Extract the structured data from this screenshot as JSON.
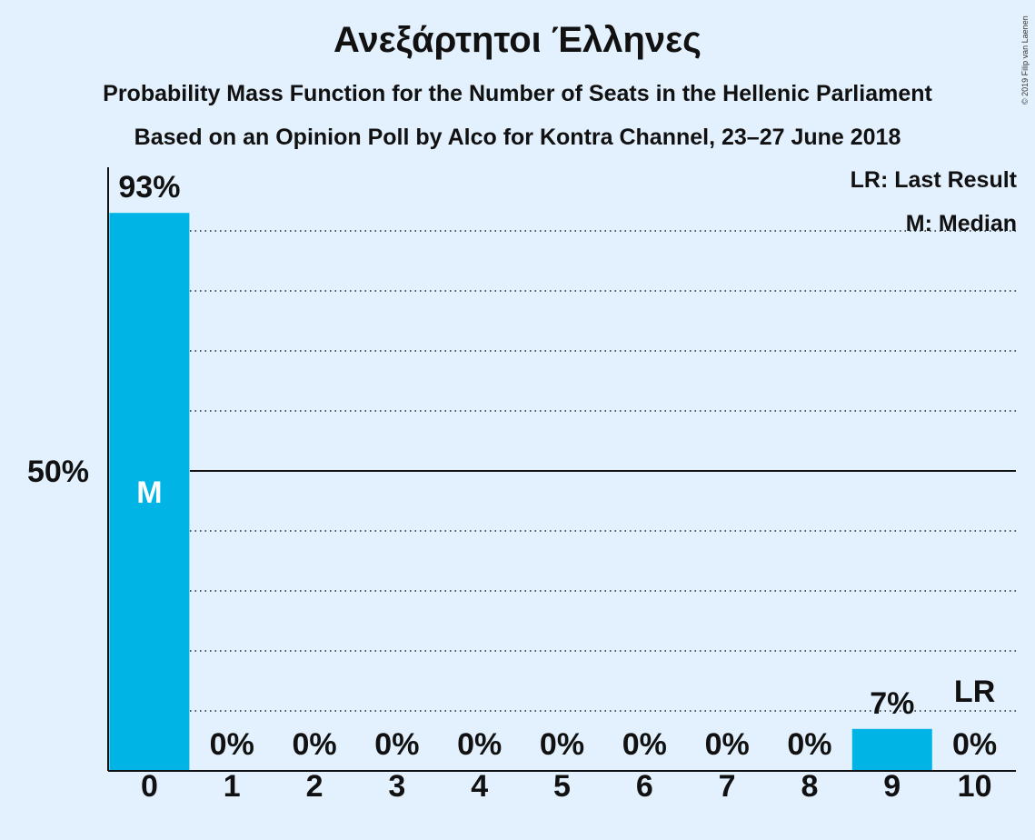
{
  "title": "Ανεξάρτητοι Έλληνες",
  "subtitle": "Probability Mass Function for the Number of Seats in the Hellenic Parliament",
  "subtitle2": "Based on an Opinion Poll by Alco for Kontra Channel, 23–27 June 2018",
  "copyright": "© 2019 Filip van Laenen",
  "legend": {
    "last_result": "LR: Last Result",
    "median": "M: Median"
  },
  "colors": {
    "background": "#e3f0fd",
    "bar": "#00b5e6",
    "axis": "#111111"
  },
  "chart_data": {
    "type": "bar",
    "categories": [
      "0",
      "1",
      "2",
      "3",
      "4",
      "5",
      "6",
      "7",
      "8",
      "9",
      "10"
    ],
    "values": [
      93,
      0,
      0,
      0,
      0,
      0,
      0,
      0,
      0,
      7,
      0
    ],
    "data_labels": [
      "93%",
      "0%",
      "0%",
      "0%",
      "0%",
      "0%",
      "0%",
      "0%",
      "0%",
      "7%",
      "0%"
    ],
    "ylim": [
      0,
      100
    ],
    "yticks": [
      {
        "value": 50,
        "label": "50%"
      }
    ],
    "gridlines": [
      10,
      20,
      30,
      40,
      60,
      70,
      80,
      90
    ],
    "median_category": "0",
    "median_marker": "M",
    "last_result_category": "10",
    "last_result_marker": "LR",
    "xlabel": "",
    "ylabel": ""
  }
}
